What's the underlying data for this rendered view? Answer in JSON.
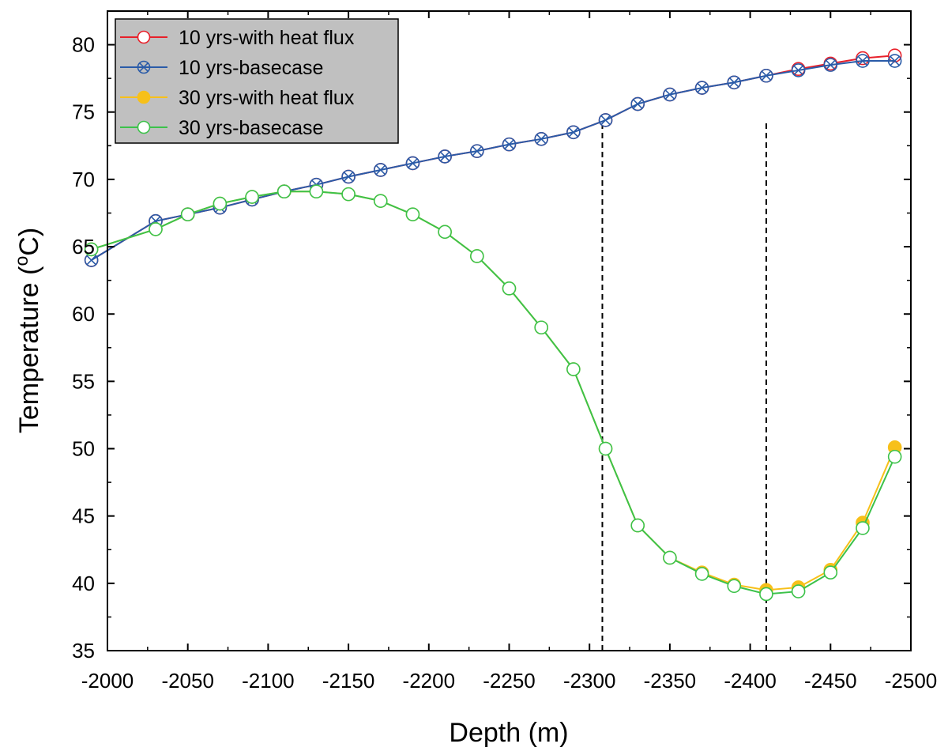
{
  "chart_data": {
    "type": "line",
    "title": "",
    "xlabel": "Depth (m)",
    "ylabel_main": "Temperature (",
    "ylabel_sup": "o",
    "ylabel_tail": "C)",
    "xlim": [
      -2000,
      -2500
    ],
    "ylim": [
      35,
      82.5
    ],
    "x_ticks": [
      -2000,
      -2050,
      -2100,
      -2150,
      -2200,
      -2250,
      -2300,
      -2350,
      -2400,
      -2450,
      -2500
    ],
    "y_ticks": [
      35,
      40,
      45,
      50,
      55,
      60,
      65,
      70,
      75,
      80
    ],
    "grid": false,
    "legend_position": "top-left",
    "reference_lines_x": [
      -2308,
      -2410
    ],
    "colors": {
      "red": "#e8202a",
      "blue": "#2a5ba8",
      "yellow": "#f7c01a",
      "green": "#3cc24a",
      "legend_bg": "#c0c0c0"
    },
    "x": [
      -1990,
      -2030,
      -2050,
      -2070,
      -2090,
      -2110,
      -2130,
      -2150,
      -2170,
      -2190,
      -2210,
      -2230,
      -2250,
      -2270,
      -2290,
      -2310,
      -2330,
      -2350,
      -2370,
      -2390,
      -2410,
      -2430,
      -2450,
      -2470,
      -2490
    ],
    "series": [
      {
        "name": "10 yrs-with heat flux",
        "color": "#e8202a",
        "marker": "open-circle",
        "values": [
          64.0,
          66.9,
          67.4,
          67.9,
          68.5,
          69.1,
          69.6,
          70.2,
          70.7,
          71.2,
          71.7,
          72.1,
          72.6,
          73.0,
          73.5,
          74.4,
          75.6,
          76.3,
          76.8,
          77.2,
          77.7,
          78.2,
          78.6,
          79.0,
          79.2
        ]
      },
      {
        "name": "10 yrs-basecase",
        "color": "#2a5ba8",
        "marker": "crossed-circle",
        "values": [
          64.0,
          66.9,
          67.4,
          67.9,
          68.5,
          69.1,
          69.6,
          70.2,
          70.7,
          71.2,
          71.7,
          72.1,
          72.6,
          73.0,
          73.5,
          74.4,
          75.6,
          76.3,
          76.8,
          77.2,
          77.7,
          78.1,
          78.5,
          78.8,
          78.8
        ]
      },
      {
        "name": "30 yrs-with heat flux",
        "color": "#f7c01a",
        "marker": "filled-circle",
        "values": [
          64.8,
          66.3,
          67.4,
          68.2,
          68.7,
          69.1,
          69.1,
          68.9,
          68.4,
          67.4,
          66.1,
          64.3,
          61.9,
          59.0,
          55.9,
          50.0,
          44.3,
          41.9,
          40.8,
          39.9,
          39.5,
          39.7,
          41.0,
          44.5,
          50.1
        ]
      },
      {
        "name": "30 yrs-basecase",
        "color": "#3cc24a",
        "marker": "open-circle",
        "values": [
          64.8,
          66.3,
          67.4,
          68.2,
          68.7,
          69.1,
          69.1,
          68.9,
          68.4,
          67.4,
          66.1,
          64.3,
          61.9,
          59.0,
          55.9,
          50.0,
          44.3,
          41.9,
          40.7,
          39.8,
          39.2,
          39.4,
          40.8,
          44.1,
          49.4
        ]
      }
    ]
  }
}
